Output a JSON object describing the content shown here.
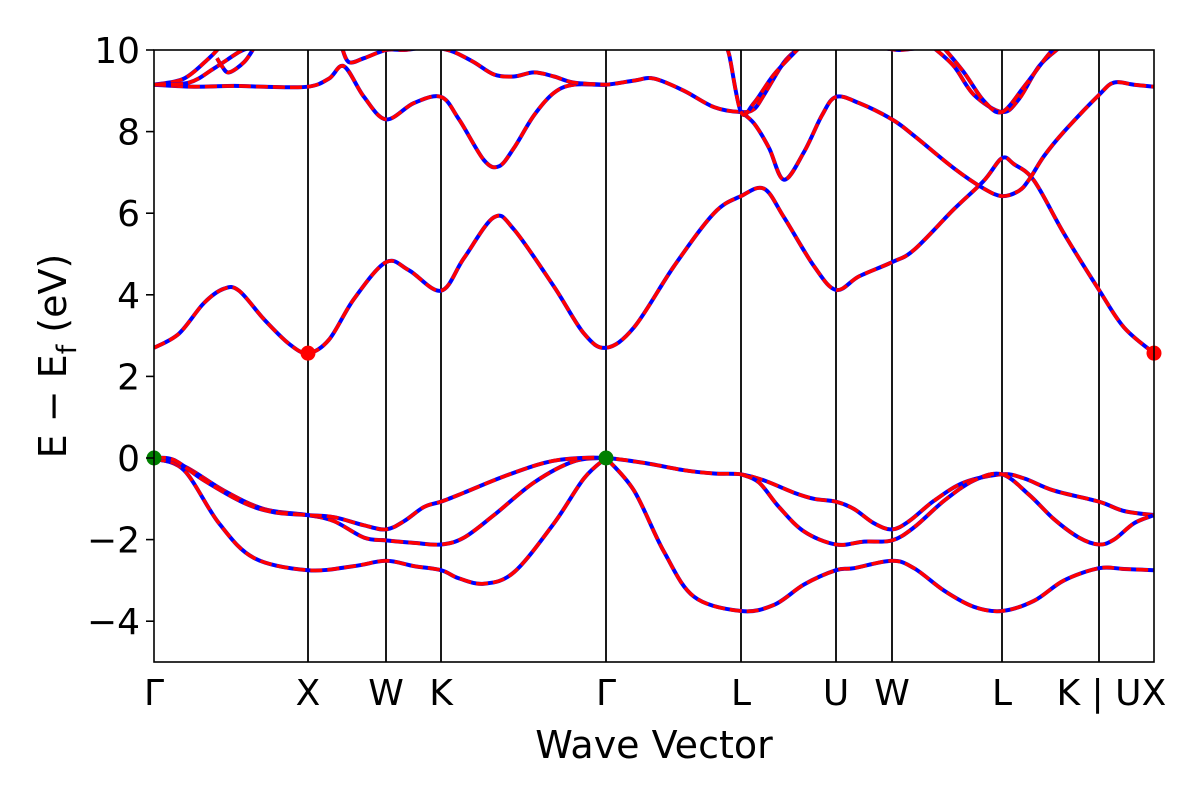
{
  "chart_data": {
    "type": "line",
    "title": "",
    "xlabel": "Wave Vector",
    "ylabel": "E − E",
    "ylabel_subscript": "f",
    "ylabel_unit": " (eV)",
    "ylim": [
      -5,
      10
    ],
    "yticks": [
      -4,
      -2,
      0,
      2,
      4,
      6,
      8,
      10
    ],
    "ytick_labels": [
      "−4",
      "−2",
      "0",
      "2",
      "4",
      "6",
      "8",
      "10"
    ],
    "xlim": [
      0,
      100
    ],
    "kpoints": [
      {
        "label": "Γ",
        "x": 0
      },
      {
        "label": "X",
        "x": 15.4
      },
      {
        "label": "W",
        "x": 23.2
      },
      {
        "label": "K",
        "x": 28.7
      },
      {
        "label": "Γ",
        "x": 45.2
      },
      {
        "label": "L",
        "x": 58.7
      },
      {
        "label": "U",
        "x": 68.2
      },
      {
        "label": "W",
        "x": 73.8
      },
      {
        "label": "L",
        "x": 84.8
      },
      {
        "label": "K | U",
        "x": 94.5
      },
      {
        "label": "X",
        "x": 100
      }
    ],
    "colors": {
      "spin_down": "#0000ff",
      "spin_up": "#ff0000",
      "cbm": "#ff0000",
      "vbm": "#008000"
    },
    "markers": [
      {
        "name": "cbm",
        "x": 15.4,
        "y": 2.57
      },
      {
        "name": "cbm",
        "x": 100,
        "y": 2.57
      },
      {
        "name": "vbm",
        "x": 0,
        "y": 0
      },
      {
        "name": "vbm",
        "x": 45.2,
        "y": 0
      }
    ],
    "series": [
      {
        "points": [
          [
            0,
            -0.02
          ],
          [
            3,
            -0.3
          ],
          [
            6.5,
            -1.6
          ],
          [
            10,
            -2.45
          ],
          [
            15.4,
            -2.75
          ],
          [
            20,
            -2.65
          ],
          [
            23.2,
            -2.52
          ],
          [
            26,
            -2.65
          ],
          [
            28.7,
            -2.75
          ],
          [
            30.5,
            -2.95
          ],
          [
            33,
            -3.08
          ],
          [
            36,
            -2.8
          ],
          [
            40,
            -1.6
          ],
          [
            43,
            -0.5
          ],
          [
            45.2,
            0
          ]
        ]
      },
      {
        "points": [
          [
            45.2,
            0
          ],
          [
            48,
            -0.8
          ],
          [
            51,
            -2.3
          ],
          [
            54,
            -3.4
          ],
          [
            58.7,
            -3.75
          ],
          [
            62,
            -3.6
          ],
          [
            65,
            -3.1
          ],
          [
            68.2,
            -2.75
          ],
          [
            70,
            -2.7
          ],
          [
            73.8,
            -2.52
          ],
          [
            76,
            -2.7
          ],
          [
            79,
            -3.25
          ],
          [
            82,
            -3.65
          ],
          [
            84.8,
            -3.75
          ],
          [
            88,
            -3.5
          ],
          [
            91,
            -3
          ],
          [
            94.5,
            -2.7
          ],
          [
            97,
            -2.72
          ],
          [
            100,
            -2.75
          ]
        ]
      },
      {
        "points": [
          [
            0,
            -0.02
          ],
          [
            3,
            -0.2
          ],
          [
            7,
            -0.8
          ],
          [
            11,
            -1.25
          ],
          [
            15.4,
            -1.4
          ],
          [
            18,
            -1.55
          ],
          [
            21,
            -1.95
          ],
          [
            23.2,
            -2.02
          ],
          [
            26,
            -2.08
          ],
          [
            28.7,
            -2.12
          ],
          [
            31,
            -1.95
          ],
          [
            34,
            -1.4
          ],
          [
            38,
            -0.6
          ],
          [
            42,
            -0.08
          ],
          [
            45.2,
            0
          ]
        ]
      },
      {
        "points": [
          [
            0,
            0
          ],
          [
            2,
            -0.05
          ],
          [
            5,
            -0.55
          ],
          [
            9,
            -1.1
          ],
          [
            12,
            -1.33
          ],
          [
            15.4,
            -1.4
          ],
          [
            18,
            -1.45
          ],
          [
            21,
            -1.65
          ],
          [
            23.2,
            -1.75
          ],
          [
            25,
            -1.55
          ],
          [
            27,
            -1.2
          ],
          [
            28.7,
            -1.07
          ],
          [
            31,
            -0.85
          ],
          [
            35,
            -0.45
          ],
          [
            39,
            -0.12
          ],
          [
            42,
            -0.01
          ],
          [
            45.2,
            0
          ],
          [
            49,
            -0.12
          ],
          [
            53,
            -0.3
          ],
          [
            56,
            -0.38
          ],
          [
            58.7,
            -0.4
          ],
          [
            61,
            -0.55
          ],
          [
            64,
            -0.85
          ],
          [
            66,
            -1
          ],
          [
            68.2,
            -1.07
          ],
          [
            70,
            -1.25
          ],
          [
            72,
            -1.6
          ],
          [
            73.8,
            -1.75
          ],
          [
            75.5,
            -1.55
          ],
          [
            78,
            -1.05
          ],
          [
            81,
            -0.6
          ],
          [
            84.8,
            -0.4
          ],
          [
            87,
            -0.5
          ],
          [
            90,
            -0.8
          ],
          [
            94.5,
            -1.07
          ],
          [
            97,
            -1.3
          ],
          [
            100,
            -1.4
          ]
        ]
      },
      {
        "points": [
          [
            58.7,
            -0.4
          ],
          [
            60.5,
            -0.6
          ],
          [
            62.5,
            -1.2
          ],
          [
            65,
            -1.8
          ],
          [
            68.2,
            -2.12
          ],
          [
            71,
            -2.05
          ],
          [
            73.8,
            -2.02
          ],
          [
            76,
            -1.7
          ],
          [
            79,
            -1.05
          ],
          [
            82,
            -0.55
          ],
          [
            84.8,
            -0.4
          ],
          [
            87.5,
            -0.9
          ],
          [
            90,
            -1.5
          ],
          [
            92.5,
            -1.95
          ],
          [
            94.5,
            -2.12
          ],
          [
            96,
            -2
          ],
          [
            98,
            -1.6
          ],
          [
            100,
            -1.4
          ]
        ]
      },
      {
        "points": [
          [
            0,
            2.7
          ],
          [
            2.5,
            3.05
          ],
          [
            5,
            3.8
          ],
          [
            7,
            4.15
          ],
          [
            8.5,
            4.1
          ],
          [
            11,
            3.4
          ],
          [
            13.5,
            2.8
          ],
          [
            15.4,
            2.57
          ],
          [
            17.5,
            2.9
          ],
          [
            20,
            3.9
          ],
          [
            23.2,
            4.8
          ],
          [
            25.5,
            4.6
          ],
          [
            28.7,
            4.1
          ],
          [
            31,
            4.9
          ],
          [
            34,
            5.9
          ],
          [
            36,
            5.6
          ],
          [
            40,
            4.2
          ],
          [
            43,
            3.05
          ],
          [
            45.2,
            2.7
          ],
          [
            48,
            3.2
          ],
          [
            52,
            4.7
          ],
          [
            56,
            6
          ],
          [
            58.7,
            6.42
          ],
          [
            61,
            6.6
          ],
          [
            63,
            5.9
          ],
          [
            66,
            4.7
          ],
          [
            68.2,
            4.12
          ],
          [
            70.5,
            4.45
          ],
          [
            73.8,
            4.8
          ],
          [
            76,
            5.1
          ],
          [
            80,
            6.1
          ],
          [
            83,
            6.8
          ],
          [
            84.8,
            7.35
          ],
          [
            86,
            7.2
          ],
          [
            88,
            6.8
          ],
          [
            91,
            5.5
          ],
          [
            94.5,
            4.12
          ],
          [
            97,
            3.2
          ],
          [
            100,
            2.57
          ]
        ]
      },
      {
        "points": [
          [
            58.7,
            8.48
          ],
          [
            60,
            8.2
          ],
          [
            61.5,
            7.6
          ],
          [
            63,
            6.82
          ],
          [
            65,
            7.5
          ],
          [
            66.8,
            8.4
          ],
          [
            68.2,
            8.85
          ],
          [
            70.5,
            8.7
          ],
          [
            73.8,
            8.3
          ],
          [
            76,
            7.9
          ],
          [
            80,
            7.1
          ],
          [
            83,
            6.6
          ],
          [
            84.8,
            6.42
          ],
          [
            86.5,
            6.55
          ],
          [
            87.5,
            6.82
          ],
          [
            89,
            7.4
          ],
          [
            91,
            8
          ],
          [
            94.5,
            8.9
          ],
          [
            96,
            9.2
          ],
          [
            98,
            9.15
          ],
          [
            100,
            9.1
          ]
        ]
      },
      {
        "points": [
          [
            0,
            9.15
          ],
          [
            4,
            9.1
          ],
          [
            8,
            9.12
          ],
          [
            11,
            9.1
          ],
          [
            15.4,
            9.1
          ],
          [
            17.5,
            9.3
          ],
          [
            19,
            9.6
          ],
          [
            21,
            8.85
          ],
          [
            23.2,
            8.3
          ],
          [
            26,
            8.7
          ],
          [
            28.7,
            8.85
          ],
          [
            30.5,
            8.3
          ],
          [
            33,
            7.3
          ],
          [
            34.5,
            7.15
          ],
          [
            36,
            7.6
          ],
          [
            38,
            8.4
          ],
          [
            40,
            8.95
          ],
          [
            42,
            9.15
          ],
          [
            45.2,
            9.15
          ],
          [
            48,
            9.25
          ],
          [
            50,
            9.3
          ],
          [
            53,
            9
          ],
          [
            56,
            8.6
          ],
          [
            58.7,
            8.48
          ],
          [
            60,
            8.55
          ],
          [
            61,
            8.9
          ],
          [
            63,
            9.7
          ],
          [
            64.5,
            10.05
          ]
        ]
      },
      {
        "points": [
          [
            0,
            9.15
          ],
          [
            3,
            9.3
          ],
          [
            5.5,
            9.8
          ],
          [
            6.5,
            10.05
          ]
        ]
      },
      {
        "points": [
          [
            0,
            9.15
          ],
          [
            3.5,
            9.2
          ],
          [
            6,
            9.55
          ],
          [
            8.5,
            9.95
          ],
          [
            9.5,
            10.05
          ]
        ]
      },
      {
        "points": [
          [
            6.3,
            9.8
          ],
          [
            6.8,
            9.6
          ],
          [
            7.5,
            9.45
          ],
          [
            9,
            9.7
          ],
          [
            10,
            10.05
          ]
        ]
      },
      {
        "points": [
          [
            18.8,
            10.05
          ],
          [
            19.5,
            9.7
          ],
          [
            21,
            9.8
          ],
          [
            23.2,
            10
          ],
          [
            25,
            10
          ],
          [
            26.5,
            10.05
          ]
        ]
      },
      {
        "points": [
          [
            28.5,
            10.05
          ],
          [
            30,
            9.95
          ],
          [
            32,
            9.7
          ],
          [
            34,
            9.4
          ],
          [
            36,
            9.35
          ],
          [
            38,
            9.45
          ],
          [
            40,
            9.35
          ],
          [
            42,
            9.2
          ],
          [
            45.2,
            9.15
          ]
        ]
      },
      {
        "points": [
          [
            57,
            10.05
          ],
          [
            57.5,
            9.9
          ],
          [
            58.7,
            8.48
          ],
          [
            60,
            8.7
          ],
          [
            62,
            9.4
          ],
          [
            64.5,
            10.05
          ]
        ]
      },
      {
        "points": [
          [
            73,
            10.05
          ],
          [
            74.5,
            10
          ],
          [
            76.5,
            10.05
          ]
        ]
      },
      {
        "points": [
          [
            78,
            10.05
          ],
          [
            80,
            9.6
          ],
          [
            82,
            8.9
          ],
          [
            84.8,
            8.48
          ],
          [
            86.5,
            8.8
          ],
          [
            88.5,
            9.6
          ],
          [
            90.5,
            10.05
          ]
        ]
      },
      {
        "points": [
          [
            79,
            10.05
          ],
          [
            81,
            9.45
          ],
          [
            83,
            8.75
          ],
          [
            84.8,
            8.48
          ],
          [
            87,
            9.1
          ],
          [
            89,
            9.75
          ],
          [
            90,
            10.05
          ]
        ]
      }
    ]
  }
}
